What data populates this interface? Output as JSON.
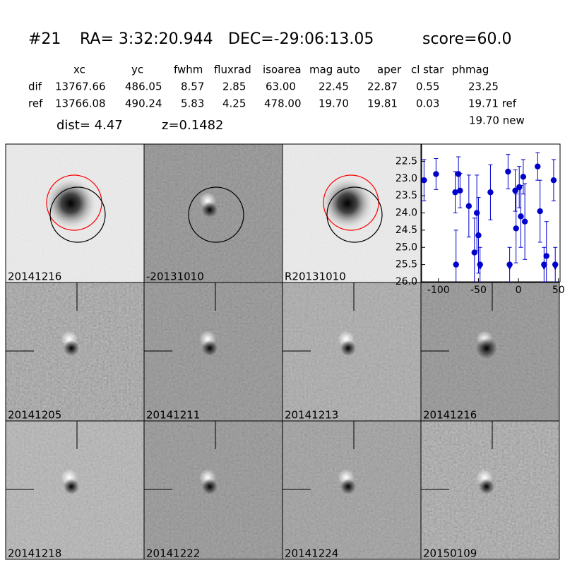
{
  "header": {
    "id": "#21",
    "ra": "RA= 3:32:20.944",
    "dec": "DEC=-29:06:13.05",
    "score": "score=60.0"
  },
  "table": {
    "columns": [
      "xc",
      "yc",
      "fwhm",
      "fluxrad",
      "isoarea",
      "mag auto",
      "aper",
      "cl star",
      "phmag"
    ],
    "rows": [
      [
        "dif",
        "13767.66",
        "486.05",
        "8.57",
        "2.85",
        "63.00",
        "22.45",
        "22.87",
        "0.55",
        "23.25"
      ],
      [
        "ref",
        "13766.08",
        "490.24",
        "5.83",
        "4.25",
        "478.00",
        "19.70",
        "19.81",
        "0.03",
        "19.71 ref"
      ]
    ],
    "extra": "19.70 new"
  },
  "dist": "dist=  4.47",
  "z": "z=0.1482",
  "panels": [
    {
      "label": "20141216"
    },
    {
      "label": "-20131010"
    },
    {
      "label": "R20131010"
    },
    {
      "label": "20141205"
    },
    {
      "label": "20141211"
    },
    {
      "label": "20141213"
    },
    {
      "label": "20141216",
      "color": "#ff0000"
    },
    {
      "label": "20141218"
    },
    {
      "label": "20141222"
    },
    {
      "label": "20141224"
    },
    {
      "label": "20150109"
    }
  ],
  "chart_data": {
    "type": "scatter",
    "color": "#0000cc",
    "x": [
      -118,
      -103,
      -79,
      -78,
      -75,
      -73,
      -62,
      -55,
      -52,
      -50,
      -48,
      -35,
      -13,
      -11,
      -4,
      -3,
      1,
      3,
      6,
      8,
      24,
      27,
      32,
      35,
      44,
      46
    ],
    "values": [
      23.05,
      22.87,
      23.4,
      25.5,
      22.87,
      23.35,
      23.8,
      25.15,
      24.0,
      24.65,
      25.5,
      23.4,
      22.8,
      25.5,
      23.35,
      24.45,
      23.25,
      24.1,
      22.95,
      24.25,
      22.65,
      23.95,
      25.5,
      25.25,
      23.05,
      25.5
    ],
    "errors": [
      0.6,
      0.45,
      0.6,
      1.0,
      0.5,
      0.5,
      0.9,
      1.0,
      1.1,
      1.1,
      0.5,
      0.8,
      0.5,
      0.5,
      0.6,
      1.0,
      0.6,
      0.9,
      0.5,
      1.1,
      0.4,
      0.9,
      0.5,
      1.0,
      0.6,
      0.5
    ],
    "upper_limit": [
      false,
      false,
      false,
      false,
      false,
      false,
      false,
      false,
      false,
      false,
      true,
      false,
      false,
      true,
      false,
      false,
      false,
      false,
      false,
      false,
      false,
      false,
      true,
      false,
      false,
      true
    ],
    "xlim": [
      -121,
      52
    ],
    "ylim": [
      26.0,
      22.0
    ],
    "xticks": [
      -100,
      -50,
      0,
      50
    ],
    "yticks": [
      22.5,
      {
        "value": 23,
        "label": "23.0"
      },
      23.5,
      {
        "value": 24,
        "label": "24.0"
      },
      24.5,
      {
        "value": 25,
        "label": "25.0"
      },
      25.5,
      {
        "value": 26,
        "label": "26.0"
      }
    ]
  }
}
